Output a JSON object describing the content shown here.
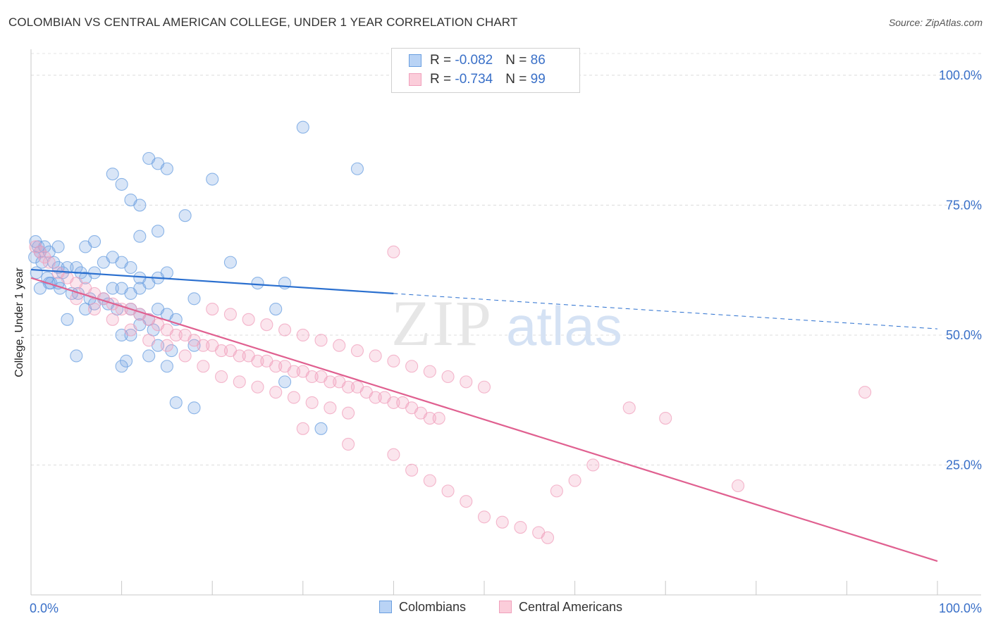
{
  "title": "COLOMBIAN VS CENTRAL AMERICAN COLLEGE, UNDER 1 YEAR CORRELATION CHART",
  "source": "Source: ZipAtlas.com",
  "watermark": {
    "part1": "ZIP",
    "part2": "atlas"
  },
  "legend": {
    "rows": [
      {
        "r_label": "R = ",
        "r_value": "-0.082",
        "n_label": "N = ",
        "n_value": "86"
      },
      {
        "r_label": "R = ",
        "r_value": "-0.734",
        "n_label": "N = ",
        "n_value": "99"
      }
    ]
  },
  "bottom_legend": [
    "Colombians",
    "Central Americans"
  ],
  "chart_data": {
    "type": "scatter",
    "xlabel": "",
    "ylabel": "College, Under 1 year",
    "xlim": [
      0,
      100
    ],
    "ylim": [
      0,
      105
    ],
    "x_tick_labels": [
      {
        "value": 0,
        "label": "0.0%"
      },
      {
        "value": 100,
        "label": "100.0%"
      }
    ],
    "y_tick_labels": [
      {
        "value": 25,
        "label": "25.0%"
      },
      {
        "value": 50,
        "label": "50.0%"
      },
      {
        "value": 75,
        "label": "75.0%"
      },
      {
        "value": 100,
        "label": "100.0%"
      }
    ],
    "grid": true,
    "legend_position": "top-center",
    "series": [
      {
        "name": "Colombians",
        "color": "#6a9fe0",
        "line_color": "#2a6fcf",
        "trend": {
          "x0": 0,
          "y0": 62.6,
          "x1": 40,
          "y1": 58.0,
          "dash_to_x": 100,
          "dash_to_y": 51.2
        },
        "points": [
          [
            0.5,
            68
          ],
          [
            0.8,
            67
          ],
          [
            1,
            66
          ],
          [
            1.5,
            67
          ],
          [
            2,
            66
          ],
          [
            0.4,
            65
          ],
          [
            1.2,
            64
          ],
          [
            2.5,
            64
          ],
          [
            3,
            63
          ],
          [
            3.5,
            62
          ],
          [
            4,
            63
          ],
          [
            5,
            63
          ],
          [
            5.5,
            62
          ],
          [
            6,
            61
          ],
          [
            7,
            62
          ],
          [
            8,
            64
          ],
          [
            9,
            65
          ],
          [
            10,
            64
          ],
          [
            11,
            63
          ],
          [
            12,
            61
          ],
          [
            0.6,
            62
          ],
          [
            1.8,
            61
          ],
          [
            2.2,
            60
          ],
          [
            3.2,
            59
          ],
          [
            4.5,
            58
          ],
          [
            5.2,
            58
          ],
          [
            6.5,
            57
          ],
          [
            8.5,
            56
          ],
          [
            9.5,
            55
          ],
          [
            11,
            55
          ],
          [
            12,
            54
          ],
          [
            13,
            53
          ],
          [
            14,
            55
          ],
          [
            15,
            54
          ],
          [
            16,
            53
          ],
          [
            12,
            52
          ],
          [
            13.5,
            51
          ],
          [
            11,
            50
          ],
          [
            10,
            50
          ],
          [
            14,
            48
          ],
          [
            15.5,
            47
          ],
          [
            13,
            46
          ],
          [
            10.5,
            45
          ],
          [
            10,
            44
          ],
          [
            15,
            44
          ],
          [
            5,
            46
          ],
          [
            4,
            53
          ],
          [
            6,
            55
          ],
          [
            7,
            56
          ],
          [
            8,
            57
          ],
          [
            9,
            59
          ],
          [
            10,
            59
          ],
          [
            11,
            58
          ],
          [
            12,
            59
          ],
          [
            13,
            60
          ],
          [
            14,
            61
          ],
          [
            15,
            62
          ],
          [
            3,
            60
          ],
          [
            2,
            60
          ],
          [
            1,
            59
          ],
          [
            13,
            84
          ],
          [
            14,
            83
          ],
          [
            15,
            82
          ],
          [
            20,
            80
          ],
          [
            9,
            81
          ],
          [
            10,
            79
          ],
          [
            11,
            76
          ],
          [
            12,
            75
          ],
          [
            14,
            70
          ],
          [
            12,
            69
          ],
          [
            30,
            90
          ],
          [
            36,
            82
          ],
          [
            17,
            73
          ],
          [
            22,
            64
          ],
          [
            25,
            60
          ],
          [
            28,
            60
          ],
          [
            27,
            55
          ],
          [
            18,
            57
          ],
          [
            16,
            37
          ],
          [
            18,
            36
          ],
          [
            32,
            32
          ],
          [
            28,
            41
          ],
          [
            18,
            48
          ],
          [
            6,
            67
          ],
          [
            7,
            68
          ],
          [
            3,
            67
          ]
        ]
      },
      {
        "name": "Central Americans",
        "color": "#f0a0bc",
        "line_color": "#e06090",
        "trend": {
          "x0": 0,
          "y0": 61.0,
          "x1": 100,
          "y1": 6.5
        },
        "points": [
          [
            0.5,
            67
          ],
          [
            1,
            66
          ],
          [
            1.5,
            65
          ],
          [
            2,
            64
          ],
          [
            3,
            62
          ],
          [
            4,
            61
          ],
          [
            5,
            60
          ],
          [
            6,
            59
          ],
          [
            7,
            58
          ],
          [
            8,
            57
          ],
          [
            9,
            56
          ],
          [
            10,
            55
          ],
          [
            11,
            55
          ],
          [
            12,
            54
          ],
          [
            13,
            53
          ],
          [
            14,
            52
          ],
          [
            15,
            51
          ],
          [
            16,
            50
          ],
          [
            17,
            50
          ],
          [
            18,
            49
          ],
          [
            19,
            48
          ],
          [
            20,
            48
          ],
          [
            21,
            47
          ],
          [
            22,
            47
          ],
          [
            23,
            46
          ],
          [
            24,
            46
          ],
          [
            25,
            45
          ],
          [
            26,
            45
          ],
          [
            27,
            44
          ],
          [
            28,
            44
          ],
          [
            29,
            43
          ],
          [
            30,
            43
          ],
          [
            31,
            42
          ],
          [
            32,
            42
          ],
          [
            33,
            41
          ],
          [
            34,
            41
          ],
          [
            35,
            40
          ],
          [
            36,
            40
          ],
          [
            37,
            39
          ],
          [
            38,
            38
          ],
          [
            39,
            38
          ],
          [
            40,
            37
          ],
          [
            41,
            37
          ],
          [
            42,
            36
          ],
          [
            43,
            35
          ],
          [
            44,
            34
          ],
          [
            45,
            34
          ],
          [
            5,
            57
          ],
          [
            7,
            55
          ],
          [
            9,
            53
          ],
          [
            11,
            51
          ],
          [
            13,
            49
          ],
          [
            15,
            48
          ],
          [
            17,
            46
          ],
          [
            19,
            44
          ],
          [
            21,
            42
          ],
          [
            23,
            41
          ],
          [
            25,
            40
          ],
          [
            27,
            39
          ],
          [
            29,
            38
          ],
          [
            31,
            37
          ],
          [
            33,
            36
          ],
          [
            35,
            35
          ],
          [
            20,
            55
          ],
          [
            22,
            54
          ],
          [
            24,
            53
          ],
          [
            26,
            52
          ],
          [
            28,
            51
          ],
          [
            30,
            50
          ],
          [
            32,
            49
          ],
          [
            34,
            48
          ],
          [
            36,
            47
          ],
          [
            38,
            46
          ],
          [
            40,
            45
          ],
          [
            42,
            44
          ],
          [
            44,
            43
          ],
          [
            46,
            42
          ],
          [
            48,
            41
          ],
          [
            50,
            40
          ],
          [
            30,
            32
          ],
          [
            35,
            29
          ],
          [
            40,
            27
          ],
          [
            42,
            24
          ],
          [
            44,
            22
          ],
          [
            46,
            20
          ],
          [
            48,
            18
          ],
          [
            50,
            15
          ],
          [
            52,
            14
          ],
          [
            54,
            13
          ],
          [
            56,
            12
          ],
          [
            57,
            11
          ],
          [
            58,
            20
          ],
          [
            60,
            22
          ],
          [
            62,
            25
          ],
          [
            66,
            36
          ],
          [
            70,
            34
          ],
          [
            78,
            21
          ],
          [
            92,
            39
          ],
          [
            40,
            66
          ]
        ]
      }
    ]
  }
}
